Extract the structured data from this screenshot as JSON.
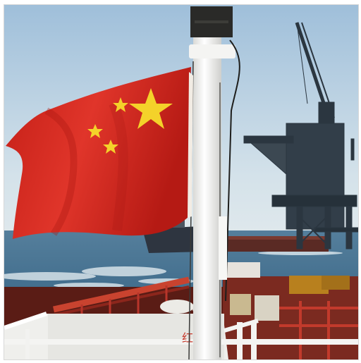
{
  "photo": {
    "subject": "",
    "colors": {
      "sky_top": "#a9c6de",
      "sky_bottom": "#d6e3ea",
      "sea": "#3b6a8c",
      "flag_red": "#d9281f",
      "flag_star": "#f6d52a",
      "deck_red": "#b8352a",
      "mast_white": "#f2f2f0",
      "platform_dark": "#2b3640"
    },
    "hull_text": "红"
  }
}
